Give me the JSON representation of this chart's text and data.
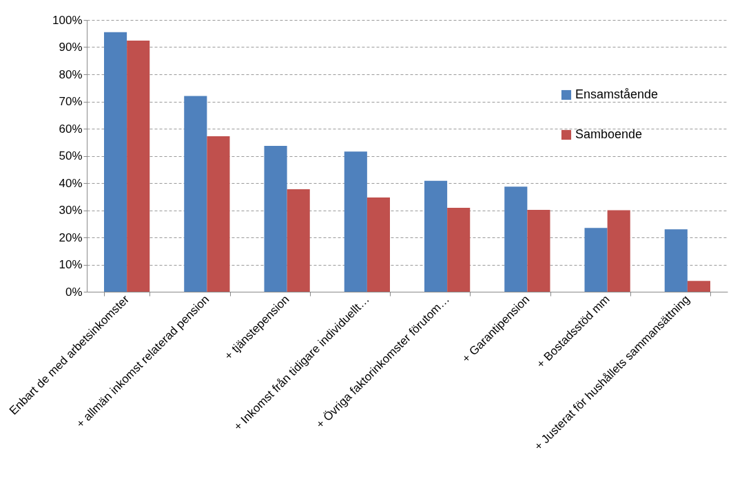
{
  "chart_data": {
    "type": "bar",
    "categories": [
      "Enbart de med arbetsinkomster",
      "+ allmän inkomst relaterad pension",
      "+ tjänstepension",
      "+ Inkomst från tidigare individuellt…",
      "+ Övriga faktorinkomster förutom…",
      "+ Garantipension",
      "+ Bostadsstöd mm",
      "+ Justerat för hushållets sammansättning"
    ],
    "series": [
      {
        "name": "Ensamstående",
        "color": "#4f81bd",
        "values": [
          95.5,
          72,
          53.7,
          51.6,
          40.8,
          38.7,
          23.5,
          23
        ]
      },
      {
        "name": "Samboende",
        "color": "#c0504d",
        "values": [
          92.4,
          57.2,
          37.7,
          34.7,
          30.9,
          30.1,
          30,
          4
        ]
      }
    ],
    "ylim": [
      0,
      100
    ],
    "yticks": [
      {
        "value": 0,
        "label": "0%"
      },
      {
        "value": 10,
        "label": "10%"
      },
      {
        "value": 20,
        "label": "20%"
      },
      {
        "value": 30,
        "label": "30%"
      },
      {
        "value": 40,
        "label": "40%"
      },
      {
        "value": 50,
        "label": "50%"
      },
      {
        "value": 60,
        "label": "60%"
      },
      {
        "value": 70,
        "label": "70%"
      },
      {
        "value": 80,
        "label": "80%"
      },
      {
        "value": 90,
        "label": "90%"
      },
      {
        "value": 100,
        "label": "100%"
      }
    ],
    "grid": "y",
    "legend": "top right"
  }
}
